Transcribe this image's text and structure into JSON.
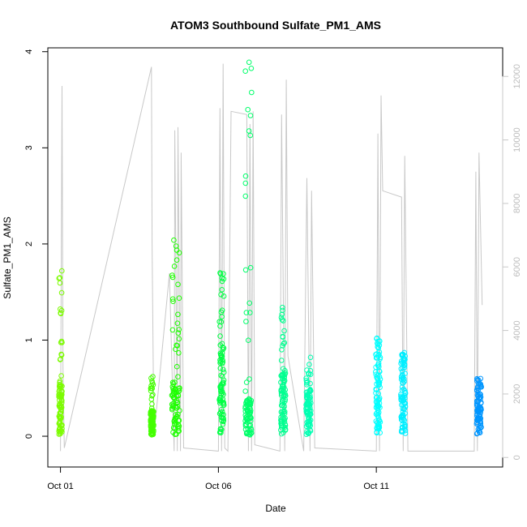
{
  "chart_data": {
    "type": "scatter",
    "title": "ATOM3 Southbound Sulfate_PM1_AMS",
    "xlabel": "Date",
    "ylabel": "Sulfate_PM1_AMS",
    "x_tick_labels": [
      "Oct 01",
      "Oct 06",
      "Oct 11"
    ],
    "x_tick_days": [
      1,
      6,
      11
    ],
    "xlim": [
      0.6,
      15.0
    ],
    "ylim": [
      -0.32,
      4.04
    ],
    "y_ticks": [
      0,
      1,
      2,
      3,
      4
    ],
    "y2lim": [
      -300,
      12900
    ],
    "y2_ticks": [
      0,
      2000,
      4000,
      6000,
      8000,
      10000,
      12000
    ],
    "y2_color": "#c8c8c8",
    "grid": false,
    "legend": "none",
    "scatter_style": "open circles, color-coded by time (green to blue)",
    "clusters": [
      {
        "day": 1.0,
        "width": 0.1,
        "median": 0.3,
        "max": 1.72,
        "color": "#7CFC00"
      },
      {
        "day": 3.9,
        "width": 0.1,
        "median": 0.14,
        "max": 0.62,
        "color": "#44FF00"
      },
      {
        "day": 4.65,
        "width": 0.25,
        "median": 0.3,
        "max": 2.04,
        "color": "#1EFF00"
      },
      {
        "day": 6.1,
        "width": 0.15,
        "median": 0.45,
        "max": 1.7,
        "color": "#00FF44"
      },
      {
        "day": 6.95,
        "width": 0.2,
        "median": 0.2,
        "max": 3.89,
        "color": "#00FF6A"
      },
      {
        "day": 8.05,
        "width": 0.15,
        "median": 0.35,
        "max": 1.34,
        "color": "#00FF90"
      },
      {
        "day": 8.85,
        "width": 0.15,
        "median": 0.25,
        "max": 0.82,
        "color": "#00FFB2"
      },
      {
        "day": 11.05,
        "width": 0.15,
        "median": 0.4,
        "max": 1.02,
        "color": "#00FFFF"
      },
      {
        "day": 11.85,
        "width": 0.15,
        "median": 0.35,
        "max": 0.87,
        "color": "#00EEFF"
      },
      {
        "day": 14.25,
        "width": 0.15,
        "median": 0.25,
        "max": 0.6,
        "color": "#0096FF"
      }
    ],
    "altitude_series": {
      "color": "#c8c8c8",
      "units_axis": "right",
      "points": [
        [
          1.0,
          200
        ],
        [
          1.05,
          11700
        ],
        [
          1.08,
          2800
        ],
        [
          1.12,
          300
        ],
        [
          3.88,
          12300
        ],
        [
          3.9,
          6700
        ],
        [
          3.95,
          1500
        ],
        [
          4.0,
          1100
        ],
        [
          4.45,
          5800
        ],
        [
          4.6,
          200
        ],
        [
          4.62,
          10300
        ],
        [
          4.7,
          200
        ],
        [
          4.72,
          10400
        ],
        [
          4.8,
          200
        ],
        [
          4.82,
          9600
        ],
        [
          4.9,
          300
        ],
        [
          6.0,
          200
        ],
        [
          6.05,
          11000
        ],
        [
          6.1,
          200
        ],
        [
          6.15,
          12400
        ],
        [
          6.2,
          300
        ],
        [
          6.3,
          200
        ],
        [
          6.4,
          10900
        ],
        [
          6.9,
          10800
        ],
        [
          6.95,
          200
        ],
        [
          7.0,
          10500
        ],
        [
          7.05,
          200
        ],
        [
          7.1,
          10900
        ],
        [
          7.15,
          400
        ],
        [
          7.95,
          200
        ],
        [
          8.0,
          10800
        ],
        [
          8.1,
          200
        ],
        [
          8.15,
          11900
        ],
        [
          8.2,
          3200
        ],
        [
          8.7,
          200
        ],
        [
          8.8,
          8800
        ],
        [
          8.9,
          200
        ],
        [
          8.95,
          8400
        ],
        [
          9.05,
          300
        ],
        [
          11.0,
          200
        ],
        [
          11.05,
          10200
        ],
        [
          11.1,
          200
        ],
        [
          11.15,
          11400
        ],
        [
          11.2,
          8400
        ],
        [
          11.8,
          8200
        ],
        [
          11.85,
          200
        ],
        [
          11.9,
          9500
        ],
        [
          12.0,
          200
        ],
        [
          14.1,
          200
        ],
        [
          14.15,
          9000
        ],
        [
          14.2,
          200
        ],
        [
          14.25,
          9600
        ],
        [
          14.35,
          4800
        ]
      ]
    }
  }
}
